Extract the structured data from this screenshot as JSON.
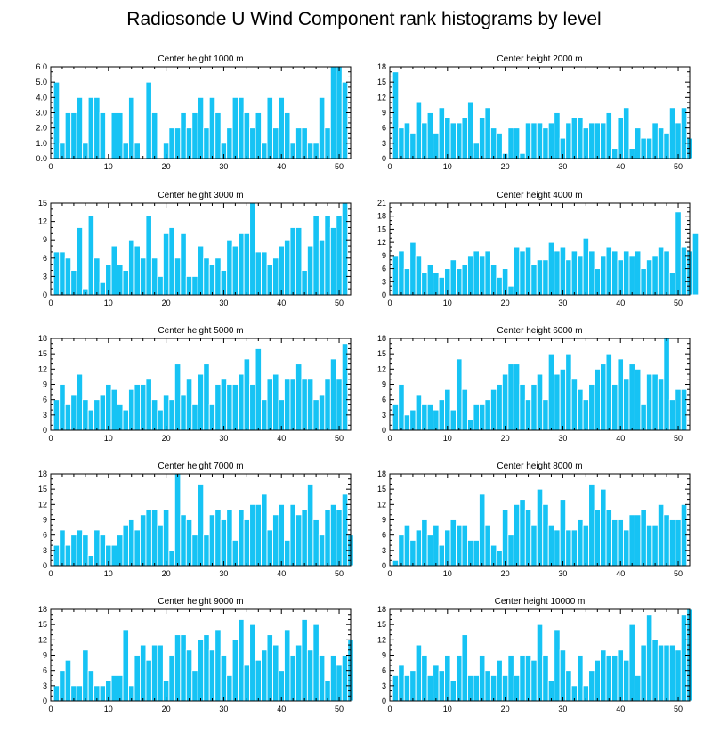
{
  "figure_title": "Radiosonde U Wind Component rank histograms by level",
  "colors": {
    "bar": "#16c3f4",
    "bar_edge": "#ffffff",
    "axis": "#000000"
  },
  "chart_data": [
    {
      "type": "bar",
      "title": "Center height 1000 m",
      "xlim": [
        0,
        52
      ],
      "ylim": [
        0,
        6
      ],
      "xticks": [
        0,
        10,
        20,
        30,
        40,
        50
      ],
      "yticks": [
        0,
        1,
        2,
        3,
        4,
        5,
        6
      ],
      "ytick_labels": [
        "0.0",
        "1.0",
        "2.0",
        "3.0",
        "4.0",
        "5.0",
        "6.0"
      ],
      "values": [
        5,
        1,
        3,
        3,
        4,
        1,
        4,
        4,
        3,
        0,
        3,
        3,
        1,
        4,
        1,
        0,
        5,
        3,
        0,
        1,
        2,
        2,
        3,
        2,
        3,
        4,
        2,
        4,
        3,
        1,
        2,
        4,
        4,
        3,
        2,
        3,
        1,
        4,
        2,
        4,
        3,
        1,
        2,
        2,
        1,
        1,
        4,
        2,
        6,
        6,
        5
      ]
    },
    {
      "type": "bar",
      "title": "Center height 2000 m",
      "xlim": [
        0,
        52
      ],
      "ylim": [
        0,
        18
      ],
      "xticks": [
        0,
        10,
        20,
        30,
        40,
        50
      ],
      "yticks": [
        0,
        3,
        6,
        9,
        12,
        15,
        18
      ],
      "ytick_labels": [
        "0",
        "3",
        "6",
        "9",
        "12",
        "15",
        "18"
      ],
      "values": [
        17,
        6,
        7,
        5,
        11,
        7,
        9,
        5,
        10,
        8,
        7,
        7,
        8,
        11,
        3,
        8,
        10,
        6,
        5,
        1,
        6,
        6,
        1,
        7,
        7,
        7,
        6,
        7,
        9,
        4,
        7,
        8,
        8,
        6,
        7,
        7,
        7,
        9,
        2,
        8,
        10,
        2,
        6,
        4,
        4,
        7,
        6,
        5,
        10,
        7,
        10,
        4
      ]
    },
    {
      "type": "bar",
      "title": "Center height 3000 m",
      "xlim": [
        0,
        52
      ],
      "ylim": [
        0,
        15
      ],
      "xticks": [
        0,
        10,
        20,
        30,
        40,
        50
      ],
      "yticks": [
        0,
        3,
        6,
        9,
        12,
        15
      ],
      "ytick_labels": [
        "0",
        "3",
        "6",
        "9",
        "12",
        "15"
      ],
      "values": [
        7,
        7,
        6,
        4,
        11,
        1,
        13,
        6,
        2,
        5,
        8,
        5,
        4,
        9,
        8,
        6,
        13,
        6,
        3,
        10,
        11,
        6,
        10,
        3,
        3,
        8,
        6,
        5,
        6,
        4,
        9,
        8,
        10,
        10,
        15,
        7,
        7,
        5,
        6,
        8,
        9,
        11,
        11,
        4,
        8,
        13,
        9,
        13,
        11,
        13,
        15
      ]
    },
    {
      "type": "bar",
      "title": "Center height 4000 m",
      "xlim": [
        0,
        52
      ],
      "ylim": [
        0,
        21
      ],
      "xticks": [
        0,
        10,
        20,
        30,
        40,
        50
      ],
      "yticks": [
        0,
        3,
        6,
        9,
        12,
        15,
        18,
        21
      ],
      "ytick_labels": [
        "0",
        "3",
        "6",
        "9",
        "12",
        "15",
        "18",
        "21"
      ],
      "values": [
        9,
        10,
        6,
        12,
        9,
        5,
        7,
        5,
        4,
        6,
        8,
        6,
        7,
        9,
        10,
        9,
        10,
        7,
        4,
        6,
        2,
        11,
        10,
        11,
        7,
        8,
        8,
        12,
        10,
        11,
        8,
        10,
        9,
        13,
        10,
        6,
        9,
        11,
        10,
        8,
        10,
        9,
        10,
        6,
        8,
        9,
        11,
        10,
        5,
        19,
        11,
        10,
        14
      ]
    },
    {
      "type": "bar",
      "title": "Center height 5000 m",
      "xlim": [
        0,
        52
      ],
      "ylim": [
        0,
        18
      ],
      "xticks": [
        0,
        10,
        20,
        30,
        40,
        50
      ],
      "yticks": [
        0,
        3,
        6,
        9,
        12,
        15,
        18
      ],
      "ytick_labels": [
        "0",
        "3",
        "6",
        "9",
        "12",
        "15",
        "18"
      ],
      "values": [
        6,
        9,
        5,
        7,
        11,
        6,
        4,
        6,
        7,
        9,
        8,
        5,
        4,
        8,
        9,
        9,
        10,
        6,
        4,
        7,
        6,
        13,
        7,
        10,
        5,
        11,
        13,
        5,
        9,
        10,
        9,
        9,
        11,
        14,
        9,
        16,
        6,
        10,
        11,
        6,
        10,
        10,
        13,
        10,
        10,
        6,
        7,
        10,
        14,
        10,
        17
      ]
    },
    {
      "type": "bar",
      "title": "Center height 6000 m",
      "xlim": [
        0,
        52
      ],
      "ylim": [
        0,
        18
      ],
      "xticks": [
        0,
        10,
        20,
        30,
        40,
        50
      ],
      "yticks": [
        0,
        3,
        6,
        9,
        12,
        15,
        18
      ],
      "ytick_labels": [
        "0",
        "3",
        "6",
        "9",
        "12",
        "15",
        "18"
      ],
      "values": [
        5,
        9,
        3,
        4,
        7,
        5,
        5,
        4,
        6,
        8,
        4,
        14,
        8,
        2,
        5,
        5,
        6,
        8,
        9,
        11,
        13,
        13,
        9,
        6,
        9,
        11,
        6,
        15,
        11,
        12,
        15,
        10,
        8,
        6,
        9,
        12,
        13,
        15,
        9,
        14,
        10,
        13,
        12,
        5,
        11,
        11,
        10,
        18,
        6,
        8,
        8
      ]
    },
    {
      "type": "bar",
      "title": "Center height 7000 m",
      "xlim": [
        0,
        52
      ],
      "ylim": [
        0,
        18
      ],
      "xticks": [
        0,
        10,
        20,
        30,
        40,
        50
      ],
      "yticks": [
        0,
        3,
        6,
        9,
        12,
        15,
        18
      ],
      "ytick_labels": [
        "0",
        "3",
        "6",
        "9",
        "12",
        "15",
        "18"
      ],
      "values": [
        4,
        7,
        4,
        6,
        7,
        6,
        2,
        7,
        6,
        4,
        4,
        6,
        8,
        9,
        7,
        10,
        11,
        11,
        8,
        11,
        3,
        18,
        10,
        9,
        6,
        16,
        6,
        10,
        11,
        9,
        11,
        5,
        11,
        9,
        12,
        12,
        14,
        7,
        10,
        12,
        5,
        12,
        10,
        11,
        16,
        9,
        6,
        11,
        12,
        11,
        14,
        6
      ]
    },
    {
      "type": "bar",
      "title": "Center height 8000 m",
      "xlim": [
        0,
        52
      ],
      "ylim": [
        0,
        18
      ],
      "xticks": [
        0,
        10,
        20,
        30,
        40,
        50
      ],
      "yticks": [
        0,
        3,
        6,
        9,
        12,
        15,
        18
      ],
      "ytick_labels": [
        "0",
        "3",
        "6",
        "9",
        "12",
        "15",
        "18"
      ],
      "values": [
        1,
        6,
        8,
        5,
        7,
        9,
        6,
        8,
        4,
        7,
        9,
        8,
        8,
        5,
        5,
        14,
        8,
        4,
        3,
        11,
        6,
        12,
        13,
        11,
        8,
        15,
        12,
        8,
        7,
        13,
        7,
        7,
        9,
        8,
        16,
        11,
        15,
        11,
        9,
        9,
        7,
        10,
        10,
        11,
        8,
        8,
        12,
        10,
        9,
        9,
        12
      ]
    },
    {
      "type": "bar",
      "title": "Center height 9000 m",
      "xlim": [
        0,
        52
      ],
      "ylim": [
        0,
        18
      ],
      "xticks": [
        0,
        10,
        20,
        30,
        40,
        50
      ],
      "yticks": [
        0,
        3,
        6,
        9,
        12,
        15,
        18
      ],
      "ytick_labels": [
        "0",
        "3",
        "6",
        "9",
        "12",
        "15",
        "18"
      ],
      "values": [
        3,
        6,
        8,
        3,
        3,
        10,
        6,
        3,
        3,
        4,
        5,
        5,
        14,
        3,
        9,
        11,
        8,
        11,
        11,
        4,
        9,
        13,
        13,
        10,
        6,
        12,
        13,
        10,
        14,
        9,
        5,
        12,
        16,
        7,
        15,
        8,
        10,
        13,
        11,
        6,
        14,
        9,
        11,
        16,
        10,
        15,
        9,
        4,
        9,
        7,
        9,
        12
      ]
    },
    {
      "type": "bar",
      "title": "Center height 10000 m",
      "xlim": [
        0,
        52
      ],
      "ylim": [
        0,
        18
      ],
      "xticks": [
        0,
        10,
        20,
        30,
        40,
        50
      ],
      "yticks": [
        0,
        3,
        6,
        9,
        12,
        15,
        18
      ],
      "ytick_labels": [
        "0",
        "3",
        "6",
        "9",
        "12",
        "15",
        "18"
      ],
      "values": [
        5,
        7,
        5,
        6,
        11,
        9,
        5,
        7,
        6,
        9,
        4,
        9,
        13,
        5,
        5,
        9,
        6,
        5,
        8,
        5,
        9,
        5,
        9,
        9,
        8,
        15,
        9,
        4,
        14,
        10,
        6,
        3,
        9,
        3,
        6,
        8,
        10,
        9,
        9,
        10,
        8,
        15,
        5,
        11,
        17,
        12,
        11,
        11,
        11,
        10,
        17,
        18
      ]
    }
  ]
}
